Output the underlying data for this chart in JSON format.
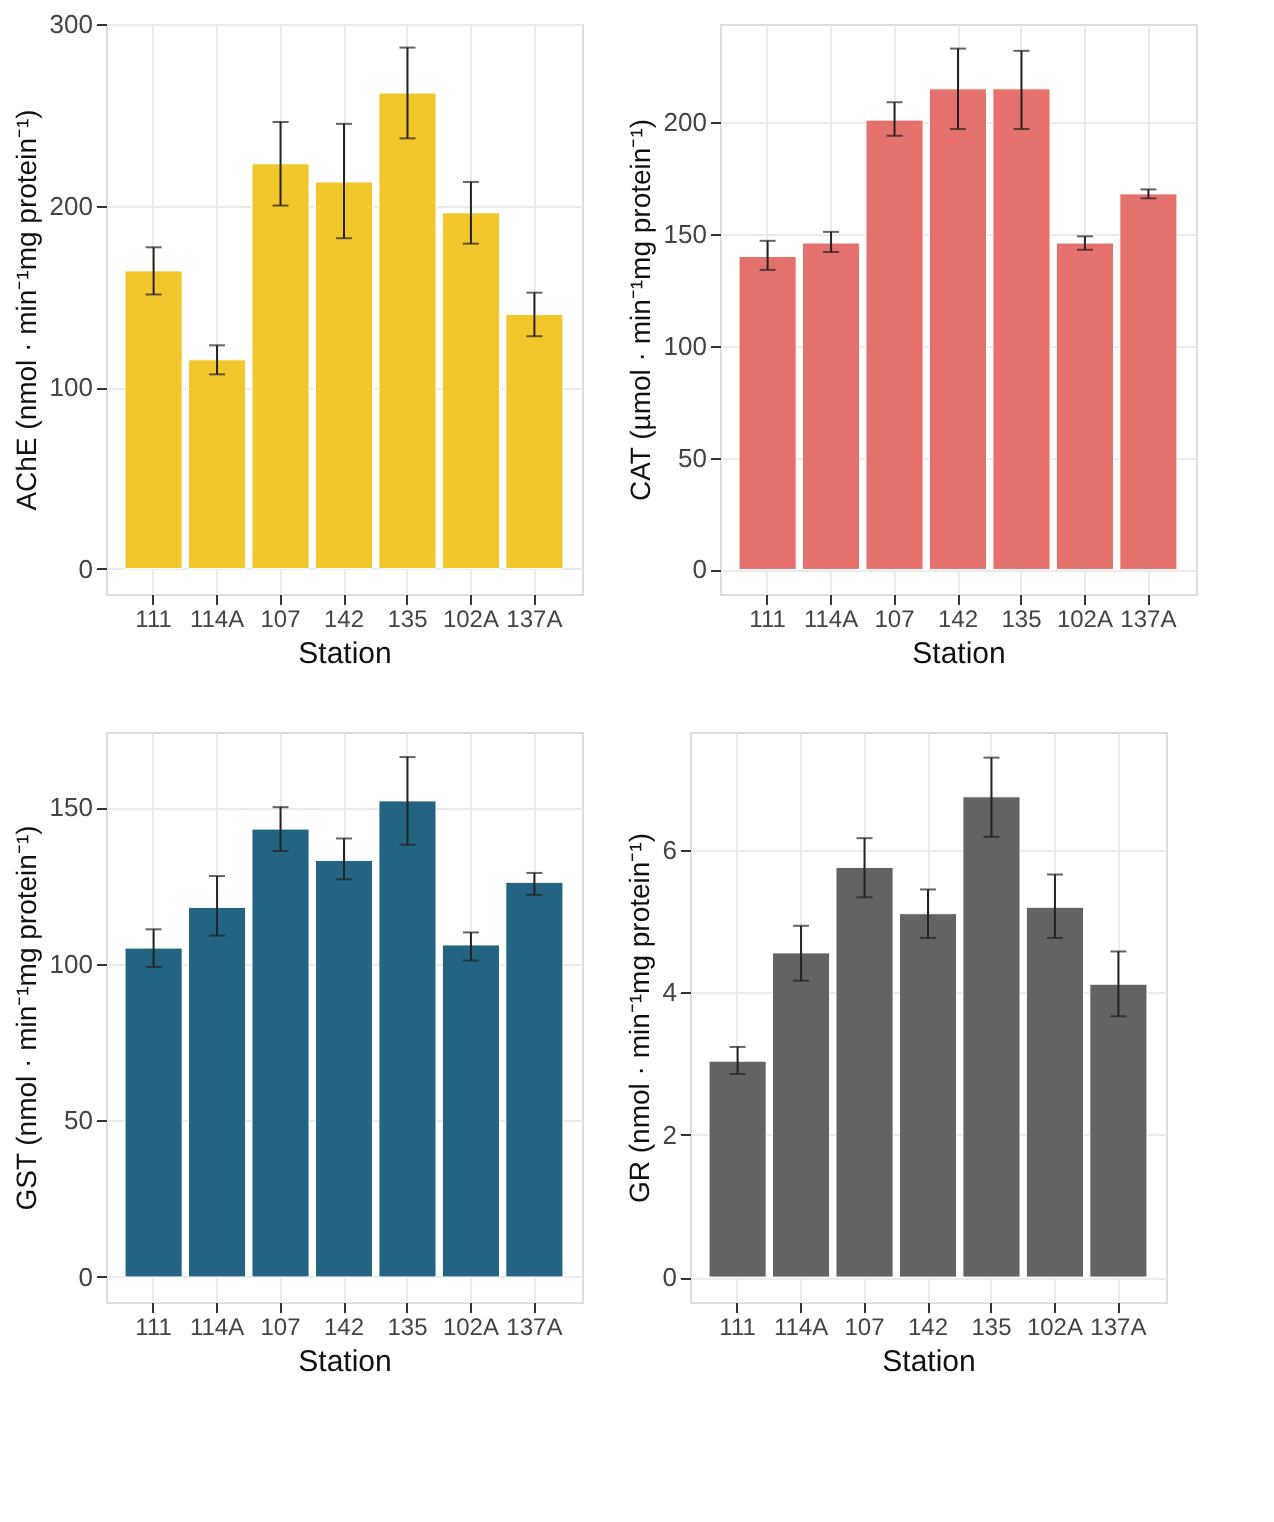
{
  "chart_data": [
    {
      "type": "bar",
      "xlabel": "Station",
      "ylabel": "AChE (nmol · min⁻¹mg protein⁻¹)",
      "categories": [
        "111",
        "114A",
        "107",
        "142",
        "135",
        "102A",
        "137A"
      ],
      "color": "#f1c72c",
      "grid": true,
      "ylim": [
        -14,
        300
      ],
      "yticks": [
        0,
        100,
        200,
        300
      ],
      "values": [
        164,
        115,
        223,
        213,
        262,
        196,
        140
      ],
      "errors": [
        [
          151,
          177
        ],
        [
          107,
          123
        ],
        [
          200,
          246
        ],
        [
          182,
          245
        ],
        [
          237,
          287
        ],
        [
          179,
          213
        ],
        [
          128,
          152
        ]
      ]
    },
    {
      "type": "bar",
      "xlabel": "Station",
      "ylabel": "CAT (µmol · min⁻¹mg protein⁻¹)",
      "categories": [
        "111",
        "114A",
        "107",
        "142",
        "135",
        "102A",
        "137A"
      ],
      "color": "#e5716c",
      "grid": true,
      "ylim": [
        -11,
        244
      ],
      "yticks": [
        0,
        50,
        100,
        150,
        200
      ],
      "values": [
        140,
        146,
        201,
        215,
        215,
        146,
        168
      ],
      "errors": [
        [
          134,
          147
        ],
        [
          142,
          151
        ],
        [
          194,
          209
        ],
        [
          197,
          233
        ],
        [
          197,
          232
        ],
        [
          143,
          149
        ],
        [
          166,
          170
        ]
      ]
    },
    {
      "type": "bar",
      "xlabel": "Station",
      "ylabel": "GST (nmol · min⁻¹mg protein⁻¹)",
      "categories": [
        "111",
        "114A",
        "107",
        "142",
        "135",
        "102A",
        "137A"
      ],
      "color": "#236482",
      "grid": true,
      "ylim": [
        -8,
        174
      ],
      "yticks": [
        0,
        50,
        100,
        150
      ],
      "values": [
        105,
        118,
        143,
        133,
        152,
        106,
        126
      ],
      "errors": [
        [
          99,
          111
        ],
        [
          109,
          128
        ],
        [
          136,
          150
        ],
        [
          127,
          140
        ],
        [
          138,
          166
        ],
        [
          101,
          110
        ],
        [
          122,
          129
        ]
      ]
    },
    {
      "type": "bar",
      "xlabel": "Station",
      "ylabel": "GR (nmol · min⁻¹mg protein⁻¹)",
      "categories": [
        "111",
        "114A",
        "107",
        "142",
        "135",
        "102A",
        "137A"
      ],
      "color": "#636363",
      "grid": true,
      "ylim": [
        -0.35,
        7.65
      ],
      "yticks": [
        0,
        2,
        4,
        6
      ],
      "values": [
        3.03,
        4.55,
        5.75,
        5.1,
        6.74,
        5.19,
        4.11
      ],
      "errors": [
        [
          2.85,
          3.23
        ],
        [
          4.16,
          4.93
        ],
        [
          5.33,
          6.16
        ],
        [
          4.76,
          5.44
        ],
        [
          6.18,
          7.29
        ],
        [
          4.76,
          5.65
        ],
        [
          3.66,
          4.57
        ]
      ]
    }
  ]
}
